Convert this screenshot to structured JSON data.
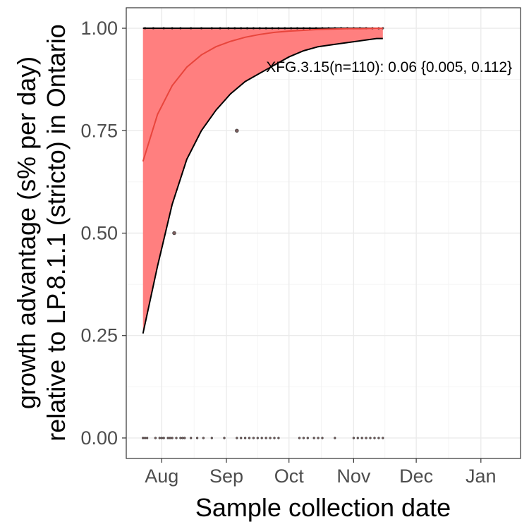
{
  "chart_data": {
    "type": "line",
    "title": "",
    "xlabel": "Sample collection date",
    "ylabel_lines": [
      "growth advantage (s% per day)",
      "relative to LP.8.1.1 (stricto) in Ontario"
    ],
    "x_ticks": [
      {
        "label": "Aug",
        "date": "2025-08-01"
      },
      {
        "label": "Sep",
        "date": "2025-09-01"
      },
      {
        "label": "Oct",
        "date": "2025-10-01"
      },
      {
        "label": "Nov",
        "date": "2025-11-01"
      },
      {
        "label": "Dec",
        "date": "2025-12-01"
      },
      {
        "label": "Jan",
        "date": "2026-01-01"
      }
    ],
    "y_ticks": [
      {
        "label": "0.00",
        "value": 0
      },
      {
        "label": "0.25",
        "value": 0.25
      },
      {
        "label": "0.50",
        "value": 0.5
      },
      {
        "label": "0.75",
        "value": 0.75
      },
      {
        "label": "1.00",
        "value": 1
      }
    ],
    "xlim": [
      "2025-07-15",
      "2026-01-20"
    ],
    "ylim": [
      -0.05,
      1.05
    ],
    "grid": true,
    "colors": {
      "ribbon": "#ff7f7f",
      "fit_line": "#e8453c",
      "ribbon_edge": "#000000",
      "points": "#333333"
    },
    "annotation": "XFG.3.15(n=110): 0.06 {0.005, 0.112}",
    "annotation_anchor": {
      "date": "2025-09-20",
      "value": 0.905
    },
    "series": [
      {
        "role": "fit",
        "x": [
          "2025-07-23",
          "2025-07-30",
          "2025-08-06",
          "2025-08-13",
          "2025-08-20",
          "2025-08-27",
          "2025-09-03",
          "2025-09-10",
          "2025-09-17",
          "2025-09-24",
          "2025-10-01",
          "2025-10-08",
          "2025-10-15",
          "2025-10-22",
          "2025-10-29",
          "2025-11-05",
          "2025-11-12",
          "2025-11-15"
        ],
        "y": [
          0.675,
          0.79,
          0.86,
          0.905,
          0.935,
          0.955,
          0.968,
          0.978,
          0.985,
          0.99,
          0.993,
          0.995,
          0.997,
          0.998,
          0.999,
          0.999,
          1.0,
          1.0
        ]
      },
      {
        "role": "ci_lower",
        "x": [
          "2025-07-23",
          "2025-07-30",
          "2025-08-06",
          "2025-08-13",
          "2025-08-20",
          "2025-08-27",
          "2025-09-03",
          "2025-09-10",
          "2025-09-17",
          "2025-09-24",
          "2025-10-01",
          "2025-10-08",
          "2025-10-15",
          "2025-10-22",
          "2025-10-29",
          "2025-11-05",
          "2025-11-12",
          "2025-11-15"
        ],
        "y": [
          0.255,
          0.42,
          0.57,
          0.68,
          0.75,
          0.8,
          0.84,
          0.87,
          0.89,
          0.91,
          0.93,
          0.945,
          0.955,
          0.96,
          0.965,
          0.97,
          0.975,
          0.975
        ]
      },
      {
        "role": "ci_upper",
        "x": [
          "2025-07-23",
          "2025-11-15"
        ],
        "y": [
          1.0,
          1.0
        ]
      },
      {
        "role": "observations",
        "points": [
          {
            "date": "2025-08-07",
            "value": 0.5
          },
          {
            "date": "2025-09-06",
            "value": 0.75
          },
          {
            "date": "2025-07-23",
            "value": 0
          },
          {
            "date": "2025-07-24",
            "value": 0
          },
          {
            "date": "2025-07-25",
            "value": 0
          },
          {
            "date": "2025-07-29",
            "value": 0
          },
          {
            "date": "2025-07-31",
            "value": 0
          },
          {
            "date": "2025-08-01",
            "value": 0
          },
          {
            "date": "2025-08-02",
            "value": 0
          },
          {
            "date": "2025-08-04",
            "value": 0
          },
          {
            "date": "2025-08-05",
            "value": 0
          },
          {
            "date": "2025-08-06",
            "value": 0
          },
          {
            "date": "2025-08-08",
            "value": 0
          },
          {
            "date": "2025-08-10",
            "value": 0
          },
          {
            "date": "2025-08-11",
            "value": 0
          },
          {
            "date": "2025-08-12",
            "value": 0
          },
          {
            "date": "2025-08-15",
            "value": 0
          },
          {
            "date": "2025-08-18",
            "value": 0
          },
          {
            "date": "2025-08-21",
            "value": 0
          },
          {
            "date": "2025-08-25",
            "value": 0
          },
          {
            "date": "2025-08-31",
            "value": 0
          },
          {
            "date": "2025-09-06",
            "value": 0
          },
          {
            "date": "2025-09-08",
            "value": 0
          },
          {
            "date": "2025-09-10",
            "value": 0
          },
          {
            "date": "2025-09-12",
            "value": 0
          },
          {
            "date": "2025-09-14",
            "value": 0
          },
          {
            "date": "2025-09-16",
            "value": 0
          },
          {
            "date": "2025-09-18",
            "value": 0
          },
          {
            "date": "2025-09-20",
            "value": 0
          },
          {
            "date": "2025-09-22",
            "value": 0
          },
          {
            "date": "2025-09-24",
            "value": 0
          },
          {
            "date": "2025-09-26",
            "value": 0
          },
          {
            "date": "2025-10-06",
            "value": 0
          },
          {
            "date": "2025-10-08",
            "value": 0
          },
          {
            "date": "2025-10-10",
            "value": 0
          },
          {
            "date": "2025-10-13",
            "value": 0
          },
          {
            "date": "2025-10-15",
            "value": 0
          },
          {
            "date": "2025-10-17",
            "value": 0
          },
          {
            "date": "2025-10-23",
            "value": 0
          },
          {
            "date": "2025-11-01",
            "value": 0
          },
          {
            "date": "2025-11-03",
            "value": 0
          },
          {
            "date": "2025-11-05",
            "value": 0
          },
          {
            "date": "2025-11-07",
            "value": 0
          },
          {
            "date": "2025-11-09",
            "value": 0
          },
          {
            "date": "2025-11-11",
            "value": 0
          },
          {
            "date": "2025-11-13",
            "value": 0
          },
          {
            "date": "2025-11-15",
            "value": 0
          },
          {
            "date": "2025-07-24",
            "value": 1
          },
          {
            "date": "2025-07-28",
            "value": 1
          },
          {
            "date": "2025-08-02",
            "value": 1
          },
          {
            "date": "2025-08-06",
            "value": 1
          },
          {
            "date": "2025-08-10",
            "value": 1
          },
          {
            "date": "2025-08-15",
            "value": 1
          },
          {
            "date": "2025-08-20",
            "value": 1
          },
          {
            "date": "2025-08-25",
            "value": 1
          },
          {
            "date": "2025-08-29",
            "value": 1
          },
          {
            "date": "2025-09-02",
            "value": 1
          },
          {
            "date": "2025-09-05",
            "value": 1
          },
          {
            "date": "2025-09-08",
            "value": 1
          },
          {
            "date": "2025-09-11",
            "value": 1
          },
          {
            "date": "2025-09-14",
            "value": 1
          },
          {
            "date": "2025-09-17",
            "value": 1
          },
          {
            "date": "2025-09-20",
            "value": 1
          },
          {
            "date": "2025-09-23",
            "value": 1
          },
          {
            "date": "2025-09-26",
            "value": 1
          },
          {
            "date": "2025-09-29",
            "value": 1
          },
          {
            "date": "2025-10-02",
            "value": 1
          },
          {
            "date": "2025-10-05",
            "value": 1
          },
          {
            "date": "2025-10-08",
            "value": 1
          },
          {
            "date": "2025-10-11",
            "value": 1
          },
          {
            "date": "2025-10-14",
            "value": 1
          },
          {
            "date": "2025-10-17",
            "value": 1
          },
          {
            "date": "2025-10-20",
            "value": 1
          },
          {
            "date": "2025-10-23",
            "value": 1
          },
          {
            "date": "2025-10-26",
            "value": 1
          },
          {
            "date": "2025-10-29",
            "value": 1
          },
          {
            "date": "2025-11-01",
            "value": 1
          },
          {
            "date": "2025-11-04",
            "value": 1
          },
          {
            "date": "2025-11-07",
            "value": 1
          },
          {
            "date": "2025-11-10",
            "value": 1
          },
          {
            "date": "2025-11-13",
            "value": 1
          },
          {
            "date": "2025-11-15",
            "value": 1
          }
        ]
      }
    ]
  }
}
